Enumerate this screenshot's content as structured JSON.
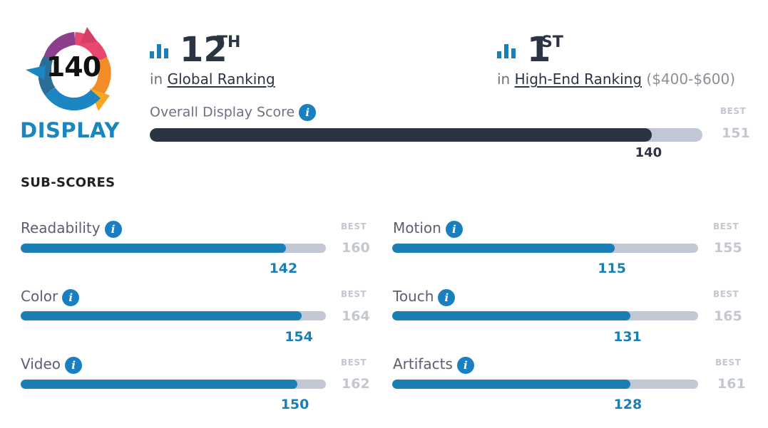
{
  "badge": {
    "score": "140",
    "label": "DISPLAY"
  },
  "global_ranking": {
    "rank": "12",
    "suffix": "TH",
    "prefix": "in",
    "link_text": "Global Ranking"
  },
  "segment_ranking": {
    "rank": "1",
    "suffix": "ST",
    "prefix": "in",
    "link_text": "High-End Ranking",
    "range": "($400-$600)"
  },
  "overall": {
    "label": "Overall Display Score",
    "value": 140,
    "best_label": "BEST",
    "best": 151
  },
  "subscores_heading": "SUB-SCORES",
  "subscores": [
    {
      "label": "Readability",
      "value": 142,
      "best_label": "BEST",
      "best": 160
    },
    {
      "label": "Motion",
      "value": 115,
      "best_label": "BEST",
      "best": 155
    },
    {
      "label": "Color",
      "value": 154,
      "best_label": "BEST",
      "best": 164
    },
    {
      "label": "Touch",
      "value": 131,
      "best_label": "BEST",
      "best": 165
    },
    {
      "label": "Video",
      "value": 150,
      "best_label": "BEST",
      "best": 162
    },
    {
      "label": "Artifacts",
      "value": 128,
      "best_label": "BEST",
      "best": 161
    }
  ],
  "icons": {
    "info": "info-icon",
    "ranking": "bar-chart-icon"
  },
  "colors": {
    "accent": "#1a7fb6",
    "dark": "#2b3442",
    "track": "#c2c7d6",
    "best": "#c2c7d0"
  }
}
